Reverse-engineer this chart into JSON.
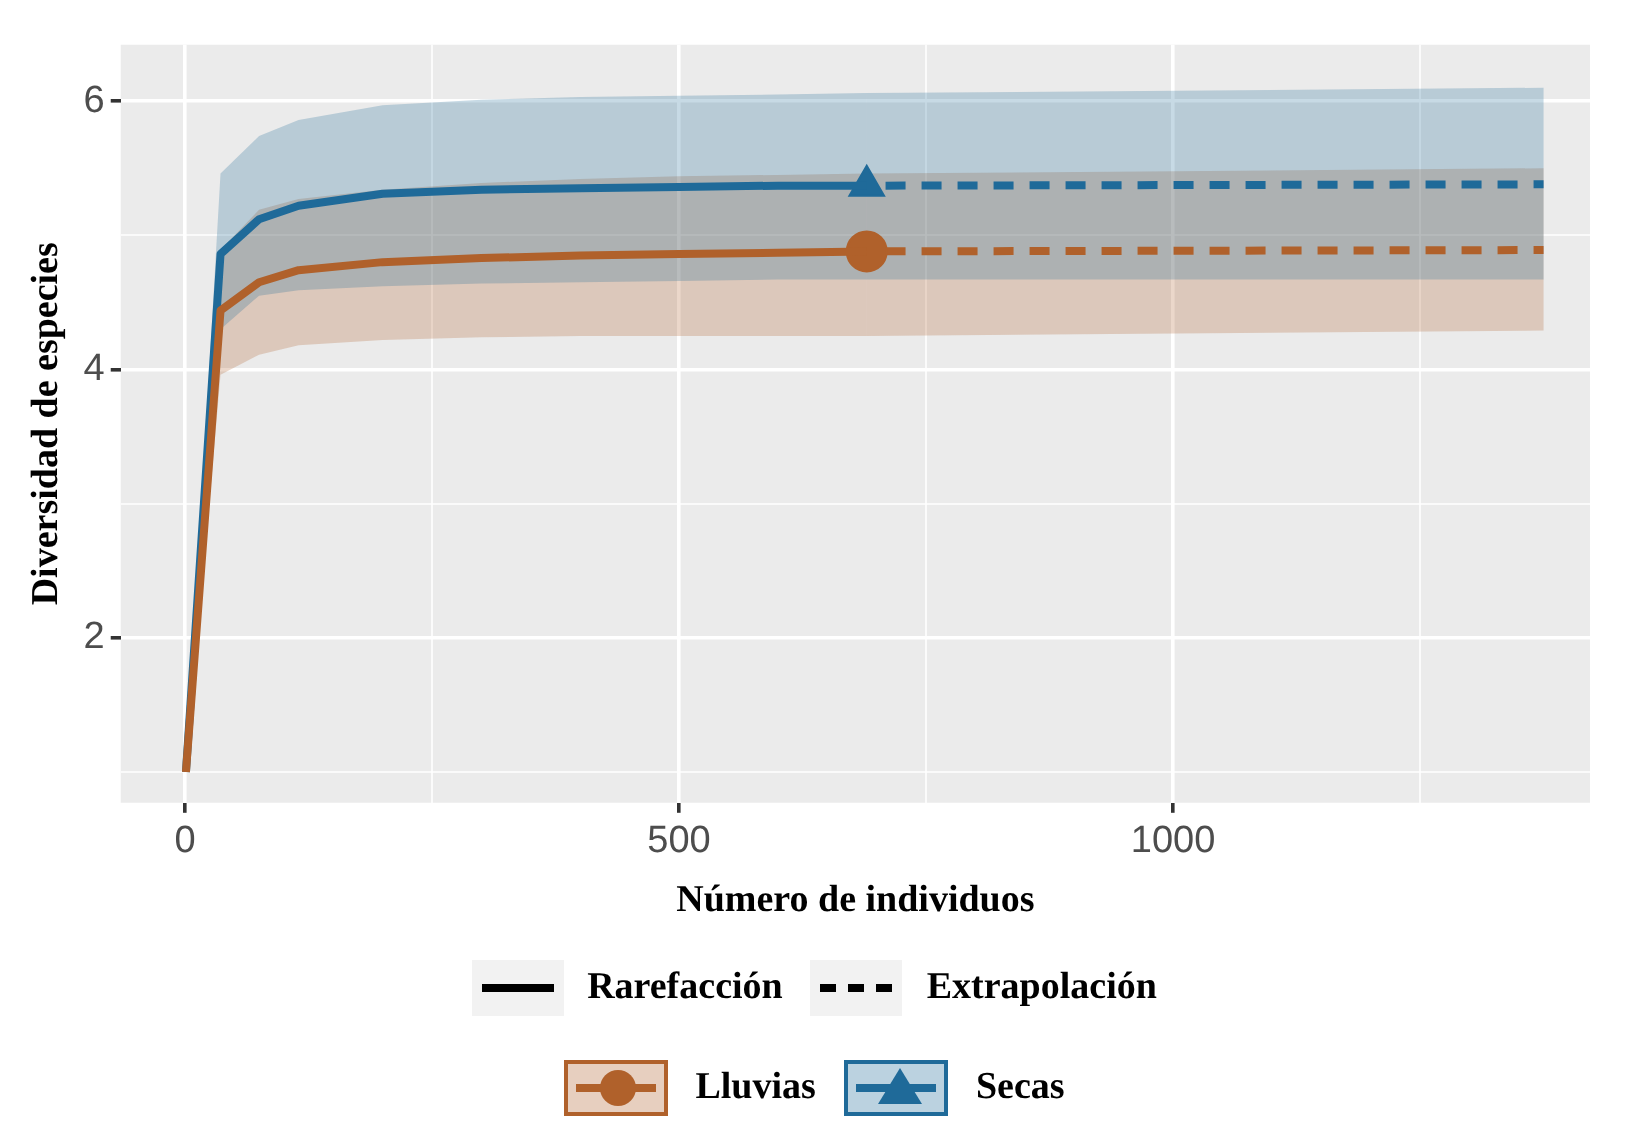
{
  "chart_data": {
    "type": "line",
    "xlabel": "Número de individuos",
    "ylabel": "Diversidad de especies",
    "xlim": [
      -65,
      1422
    ],
    "xticks": [
      0,
      {
        "value": 250,
        "label": null
      },
      500,
      {
        "value": 750,
        "label": null
      },
      1000,
      {
        "value": 1250,
        "label": null
      }
    ],
    "ylim": [
      0.77,
      6.42
    ],
    "yticks": [
      {
        "value": 1,
        "label": null
      },
      2,
      {
        "value": 3,
        "label": null
      },
      4,
      {
        "value": 5,
        "label": null
      },
      6
    ],
    "grid": true,
    "legend": "bottom",
    "annotations": [
      "Rarefacción",
      "Extrapolación"
    ],
    "series": [
      {
        "name": "Lluvias",
        "color": "#b0612b",
        "line_style": "solid",
        "x": [
          1,
          36,
          75,
          115,
          200,
          300,
          400,
          500,
          600,
          690
        ],
        "values": [
          1,
          4.44,
          4.65,
          4.74,
          4.8,
          4.83,
          4.85,
          4.86,
          4.87,
          4.88
        ],
        "lower": [
          1,
          3.96,
          4.11,
          4.18,
          4.22,
          4.24,
          4.25,
          4.25,
          4.25,
          4.25
        ],
        "upper": [
          1,
          4.89,
          5.19,
          5.27,
          5.34,
          5.39,
          5.42,
          5.44,
          5.45,
          5.46
        ]
      },
      {
        "type": "scatter",
        "color": "#b0612b",
        "marker": "circle",
        "x": [
          690
        ],
        "values": [
          4.88
        ]
      },
      {
        "color": "#b0612b",
        "line_style": "dashed",
        "x": [
          690,
          1375
        ],
        "values": [
          4.88,
          4.89
        ],
        "lower": [
          4.25,
          4.29
        ],
        "upper": [
          5.46,
          5.5
        ]
      },
      {
        "name": "Secas",
        "color": "#1f6a99",
        "line_style": "solid",
        "x": [
          1,
          36,
          75,
          115,
          200,
          300,
          400,
          500,
          600,
          690
        ],
        "values": [
          1,
          4.86,
          5.12,
          5.22,
          5.31,
          5.34,
          5.35,
          5.36,
          5.37,
          5.37
        ],
        "lower": [
          1,
          4.3,
          4.55,
          4.59,
          4.62,
          4.64,
          4.65,
          4.66,
          4.67,
          4.67
        ],
        "upper": [
          1,
          5.46,
          5.74,
          5.86,
          5.97,
          6.01,
          6.03,
          6.04,
          6.05,
          6.06
        ]
      },
      {
        "type": "scatter",
        "color": "#1f6a99",
        "marker": "triangle",
        "x": [
          690
        ],
        "values": [
          5.37
        ]
      },
      {
        "color": "#1f6a99",
        "line_style": "dashed",
        "x": [
          690,
          1375
        ],
        "values": [
          5.37,
          5.38
        ],
        "lower": [
          4.67,
          4.67
        ],
        "upper": [
          6.06,
          6.1
        ]
      }
    ]
  }
}
